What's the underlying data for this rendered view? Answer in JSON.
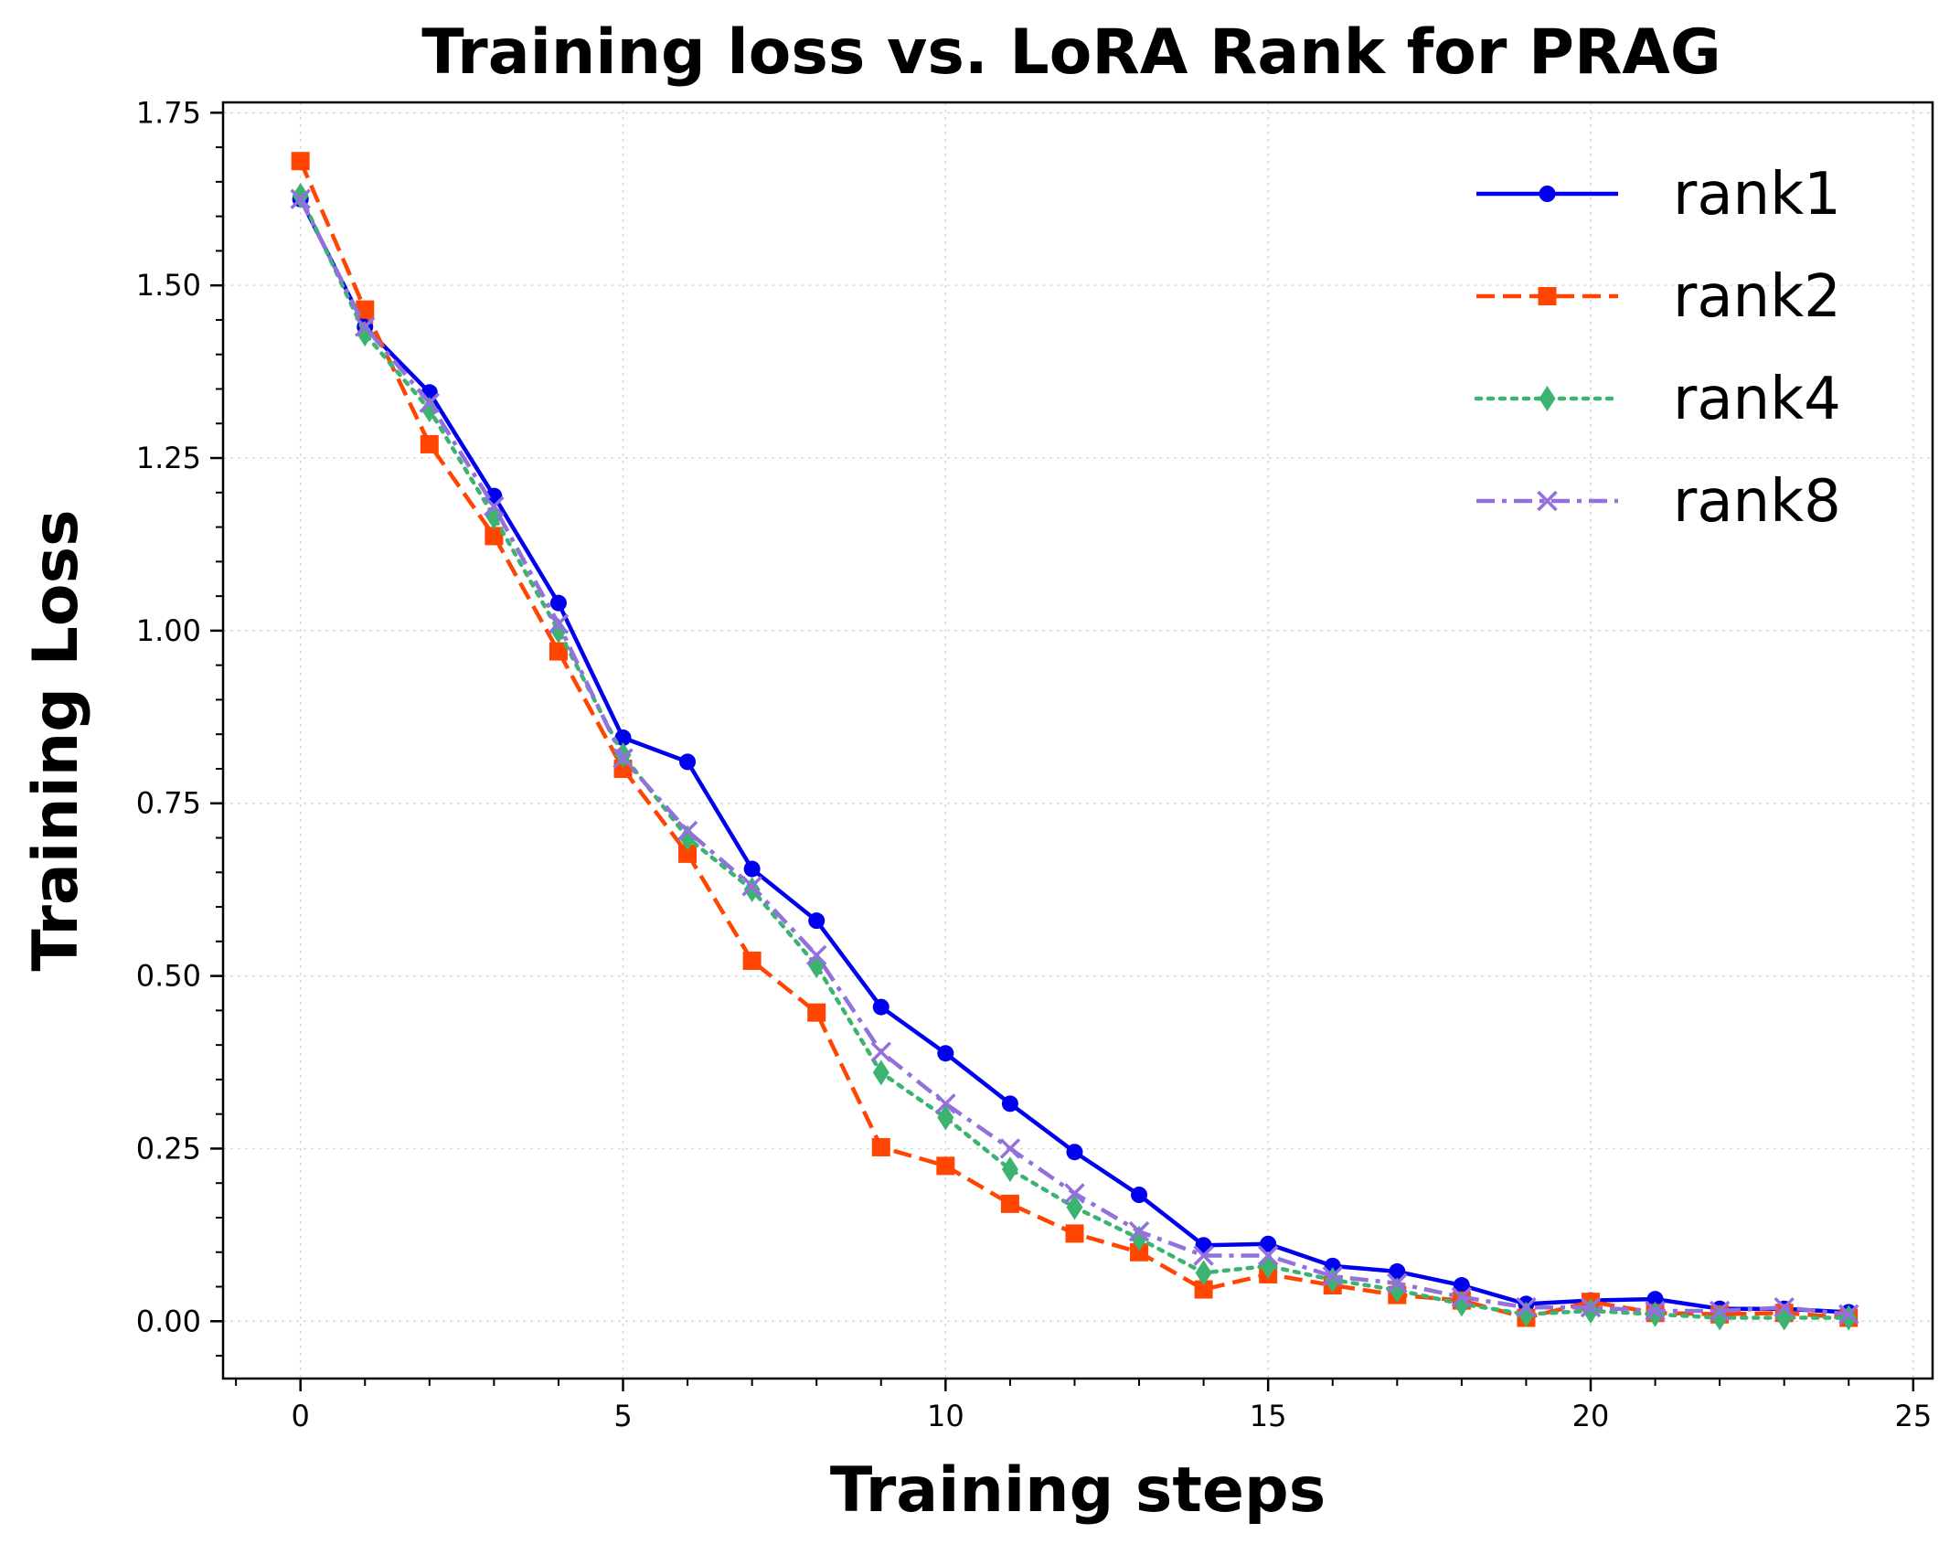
{
  "chart_data": {
    "type": "line",
    "title": "Training loss vs. LoRA Rank for PRAG",
    "xlabel": "Training steps",
    "ylabel": "Training Loss",
    "xlim": [
      -1.2,
      25.3
    ],
    "ylim": [
      -0.083,
      1.765
    ],
    "xticks": [
      0,
      5,
      10,
      15,
      20,
      25
    ],
    "xtick_labels": [
      "0",
      "5",
      "10",
      "15",
      "20",
      "25"
    ],
    "yticks": [
      0.0,
      0.25,
      0.5,
      0.75,
      1.0,
      1.25,
      1.5,
      1.75
    ],
    "ytick_labels": [
      "0.00",
      "0.25",
      "0.50",
      "0.75",
      "1.00",
      "1.25",
      "1.50",
      "1.75"
    ],
    "grid": true,
    "legend_position": "top-right",
    "x": [
      0,
      1,
      2,
      3,
      4,
      5,
      6,
      7,
      8,
      9,
      10,
      11,
      12,
      13,
      14,
      15,
      16,
      17,
      18,
      19,
      20,
      21,
      22,
      23,
      24
    ],
    "series": [
      {
        "name": "rank1",
        "color": "#0000ee",
        "line_style": "solid",
        "marker": "circle",
        "values": [
          1.625,
          1.44,
          1.345,
          1.195,
          1.04,
          0.845,
          0.81,
          0.655,
          0.58,
          0.455,
          0.388,
          0.315,
          0.245,
          0.183,
          0.11,
          0.112,
          0.08,
          0.072,
          0.052,
          0.025,
          0.03,
          0.032,
          0.018,
          0.018,
          0.013
        ]
      },
      {
        "name": "rank2",
        "color": "#ff4500",
        "line_style": "dashed",
        "marker": "square",
        "values": [
          1.68,
          1.465,
          1.27,
          1.137,
          0.97,
          0.8,
          0.677,
          0.522,
          0.447,
          0.252,
          0.225,
          0.17,
          0.127,
          0.1,
          0.046,
          0.068,
          0.052,
          0.038,
          0.03,
          0.005,
          0.028,
          0.012,
          0.01,
          0.012,
          0.005
        ]
      },
      {
        "name": "rank4",
        "color": "#3cb371",
        "line_style": "dotted",
        "marker": "diamond",
        "values": [
          1.63,
          1.43,
          1.32,
          1.165,
          1.0,
          0.82,
          0.7,
          0.625,
          0.515,
          0.36,
          0.295,
          0.22,
          0.165,
          0.12,
          0.07,
          0.08,
          0.06,
          0.045,
          0.025,
          0.01,
          0.015,
          0.01,
          0.005,
          0.005,
          0.005
        ]
      },
      {
        "name": "rank8",
        "color": "#9370db",
        "line_style": "dashdot",
        "marker": "x",
        "values": [
          1.625,
          1.44,
          1.33,
          1.18,
          1.01,
          0.815,
          0.71,
          0.63,
          0.53,
          0.39,
          0.315,
          0.25,
          0.185,
          0.13,
          0.095,
          0.095,
          0.065,
          0.055,
          0.035,
          0.02,
          0.02,
          0.015,
          0.015,
          0.02,
          0.01
        ]
      }
    ]
  }
}
